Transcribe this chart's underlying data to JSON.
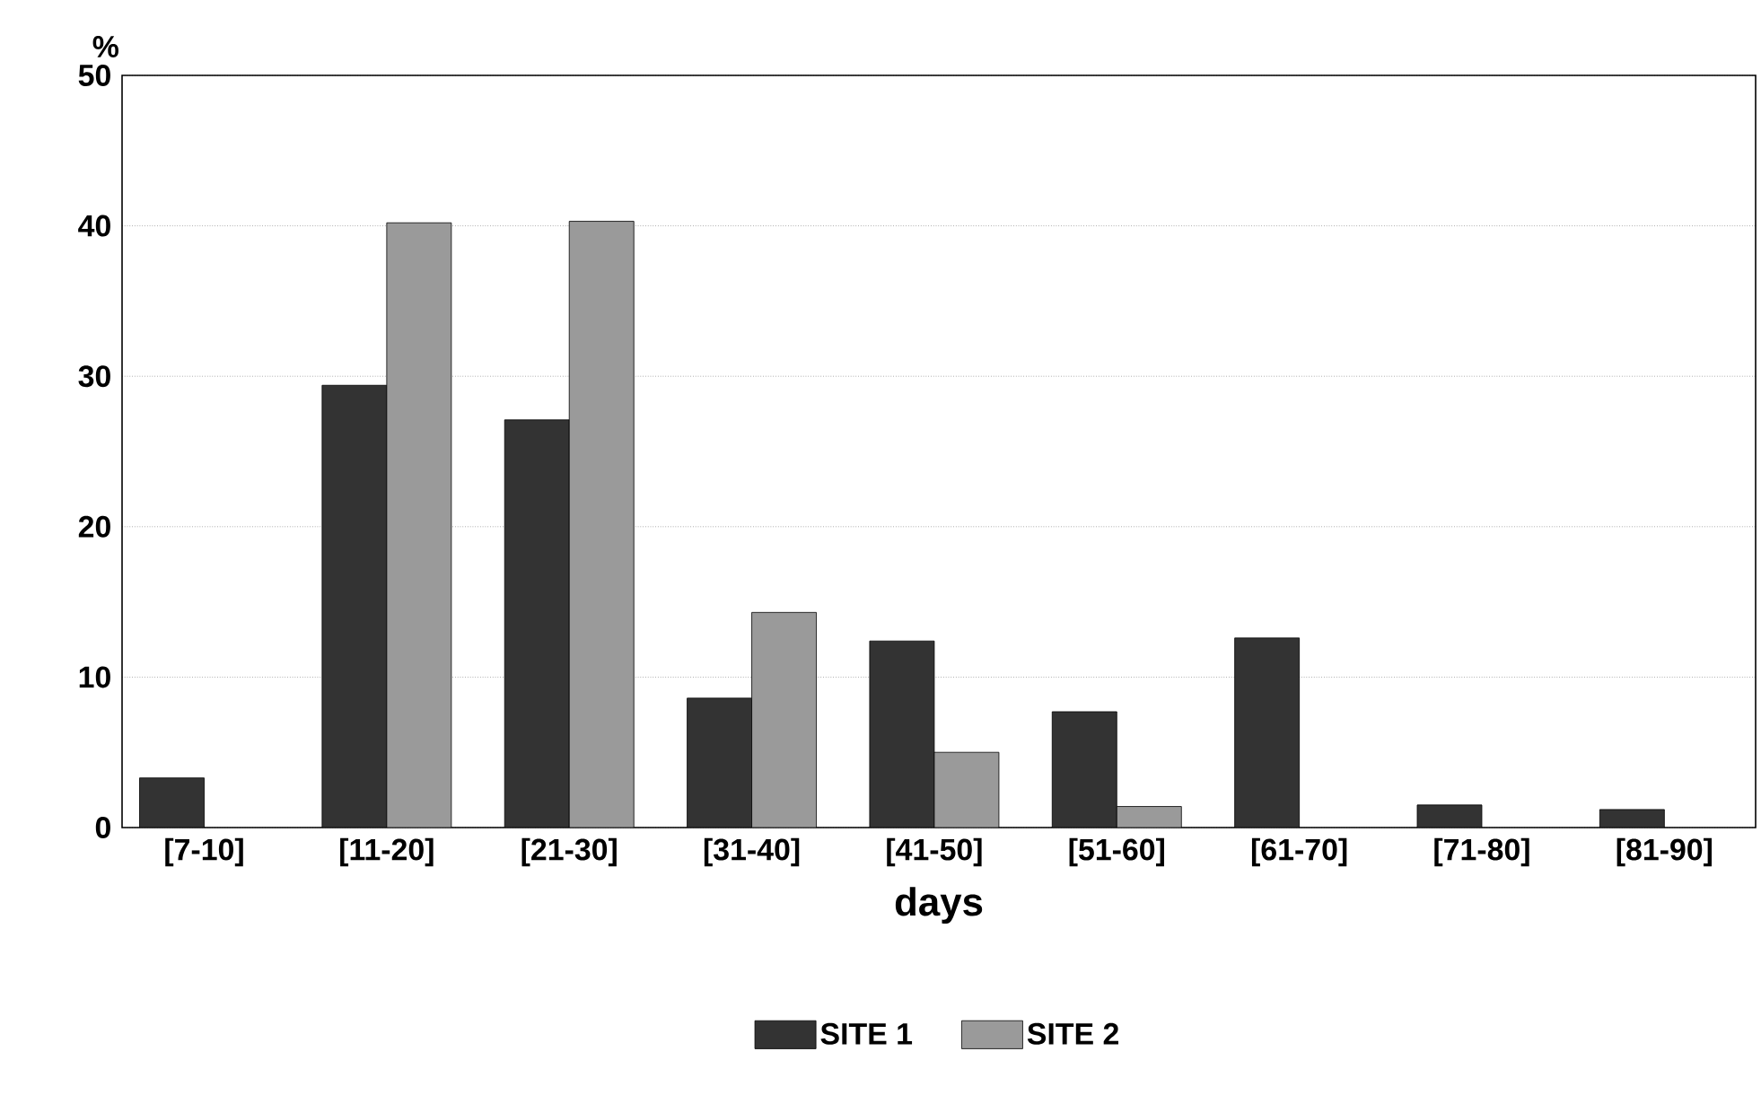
{
  "chart_data": {
    "type": "bar",
    "xlabel": "days",
    "ylabel": "%",
    "categories": [
      "[7-10]",
      "[11-20]",
      "[21-30]",
      "[31-40]",
      "[41-50]",
      "[51-60]",
      "[61-70]",
      "[71-80]",
      "[81-90]"
    ],
    "series": [
      {
        "name": "SITE 1",
        "color": "#333333",
        "values": [
          3.3,
          29.4,
          27.1,
          8.6,
          12.4,
          7.7,
          12.6,
          1.5,
          1.2
        ]
      },
      {
        "name": "SITE 2",
        "color": "#9a9a9a",
        "values": [
          null,
          40.2,
          40.3,
          14.3,
          5.0,
          1.4,
          null,
          null,
          null
        ]
      }
    ],
    "ylim": [
      0,
      50
    ],
    "yticks": [
      0,
      10,
      20,
      30,
      40,
      50
    ],
    "grid": "y",
    "legend": "bottom"
  }
}
